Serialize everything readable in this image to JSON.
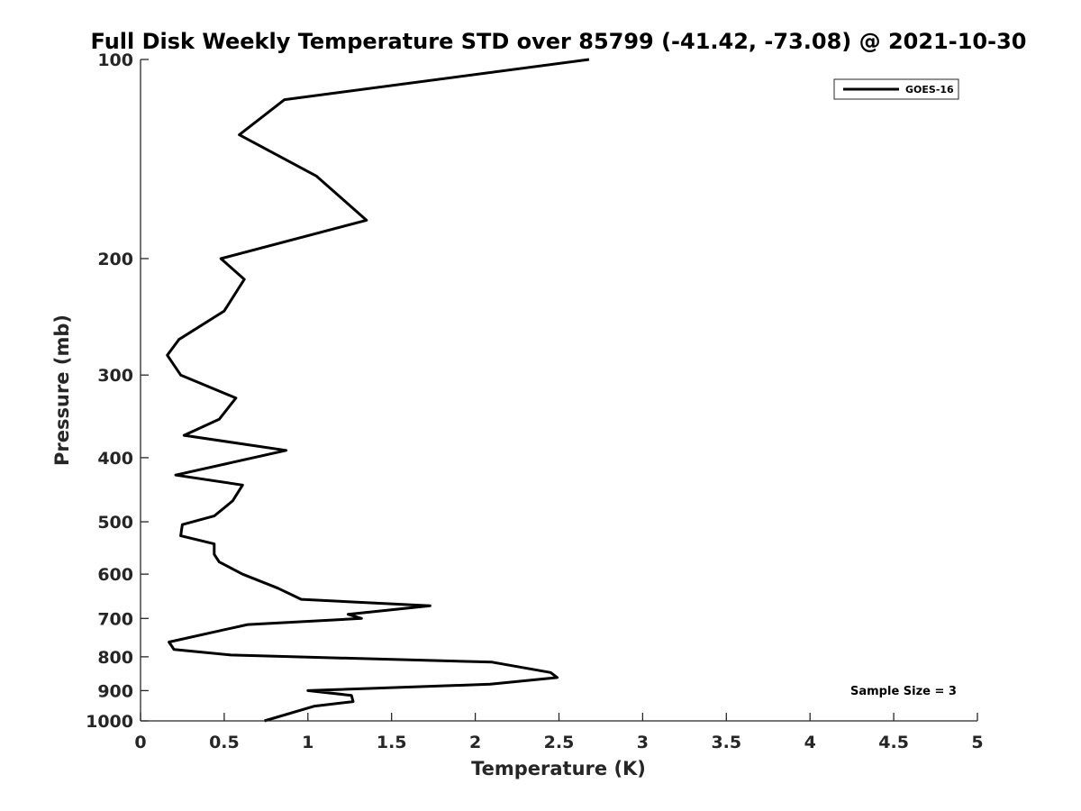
{
  "chart_data": {
    "type": "line",
    "title": "Full Disk Weekly Temperature STD over 85799 (-41.42, -73.08) @ 2021-10-30",
    "xlabel": "Temperature (K)",
    "ylabel": "Pressure (mb)",
    "xlim": [
      0,
      5
    ],
    "ylim": [
      100,
      1000
    ],
    "y_scale": "log",
    "y_reversed": true,
    "x_ticks": [
      "0",
      "0.5",
      "1",
      "1.5",
      "2",
      "2.5",
      "3",
      "3.5",
      "4",
      "4.5",
      "5"
    ],
    "y_ticks": [
      "100",
      "200",
      "300",
      "400",
      "500",
      "600",
      "700",
      "800",
      "900",
      "1000"
    ],
    "grid": false,
    "legend": {
      "position": "top-right",
      "entries": [
        "GOES-16"
      ]
    },
    "annotations": [
      "Sample Size = 3"
    ],
    "series": [
      {
        "name": "GOES-16",
        "color": "#000000",
        "x": [
          2.68,
          0.86,
          0.59,
          1.05,
          1.35,
          0.48,
          0.62,
          0.5,
          0.23,
          0.16,
          0.24,
          0.57,
          0.47,
          0.26,
          0.87,
          0.21,
          0.61,
          0.55,
          0.44,
          0.25,
          0.24,
          0.44,
          0.44,
          0.47,
          0.61,
          0.82,
          0.96,
          1.73,
          1.24,
          1.32,
          0.64,
          0.17,
          0.2,
          0.54,
          2.1,
          2.45,
          2.49,
          2.09,
          1.0,
          1.26,
          1.27,
          1.04,
          0.74
        ],
        "y": [
          100,
          115,
          130,
          150,
          175,
          200,
          215,
          240,
          265,
          280,
          300,
          325,
          350,
          370,
          390,
          425,
          440,
          465,
          490,
          505,
          525,
          540,
          560,
          575,
          600,
          630,
          655,
          670,
          690,
          700,
          715,
          760,
          780,
          795,
          815,
          845,
          860,
          880,
          900,
          915,
          935,
          950,
          1000
        ]
      }
    ]
  }
}
